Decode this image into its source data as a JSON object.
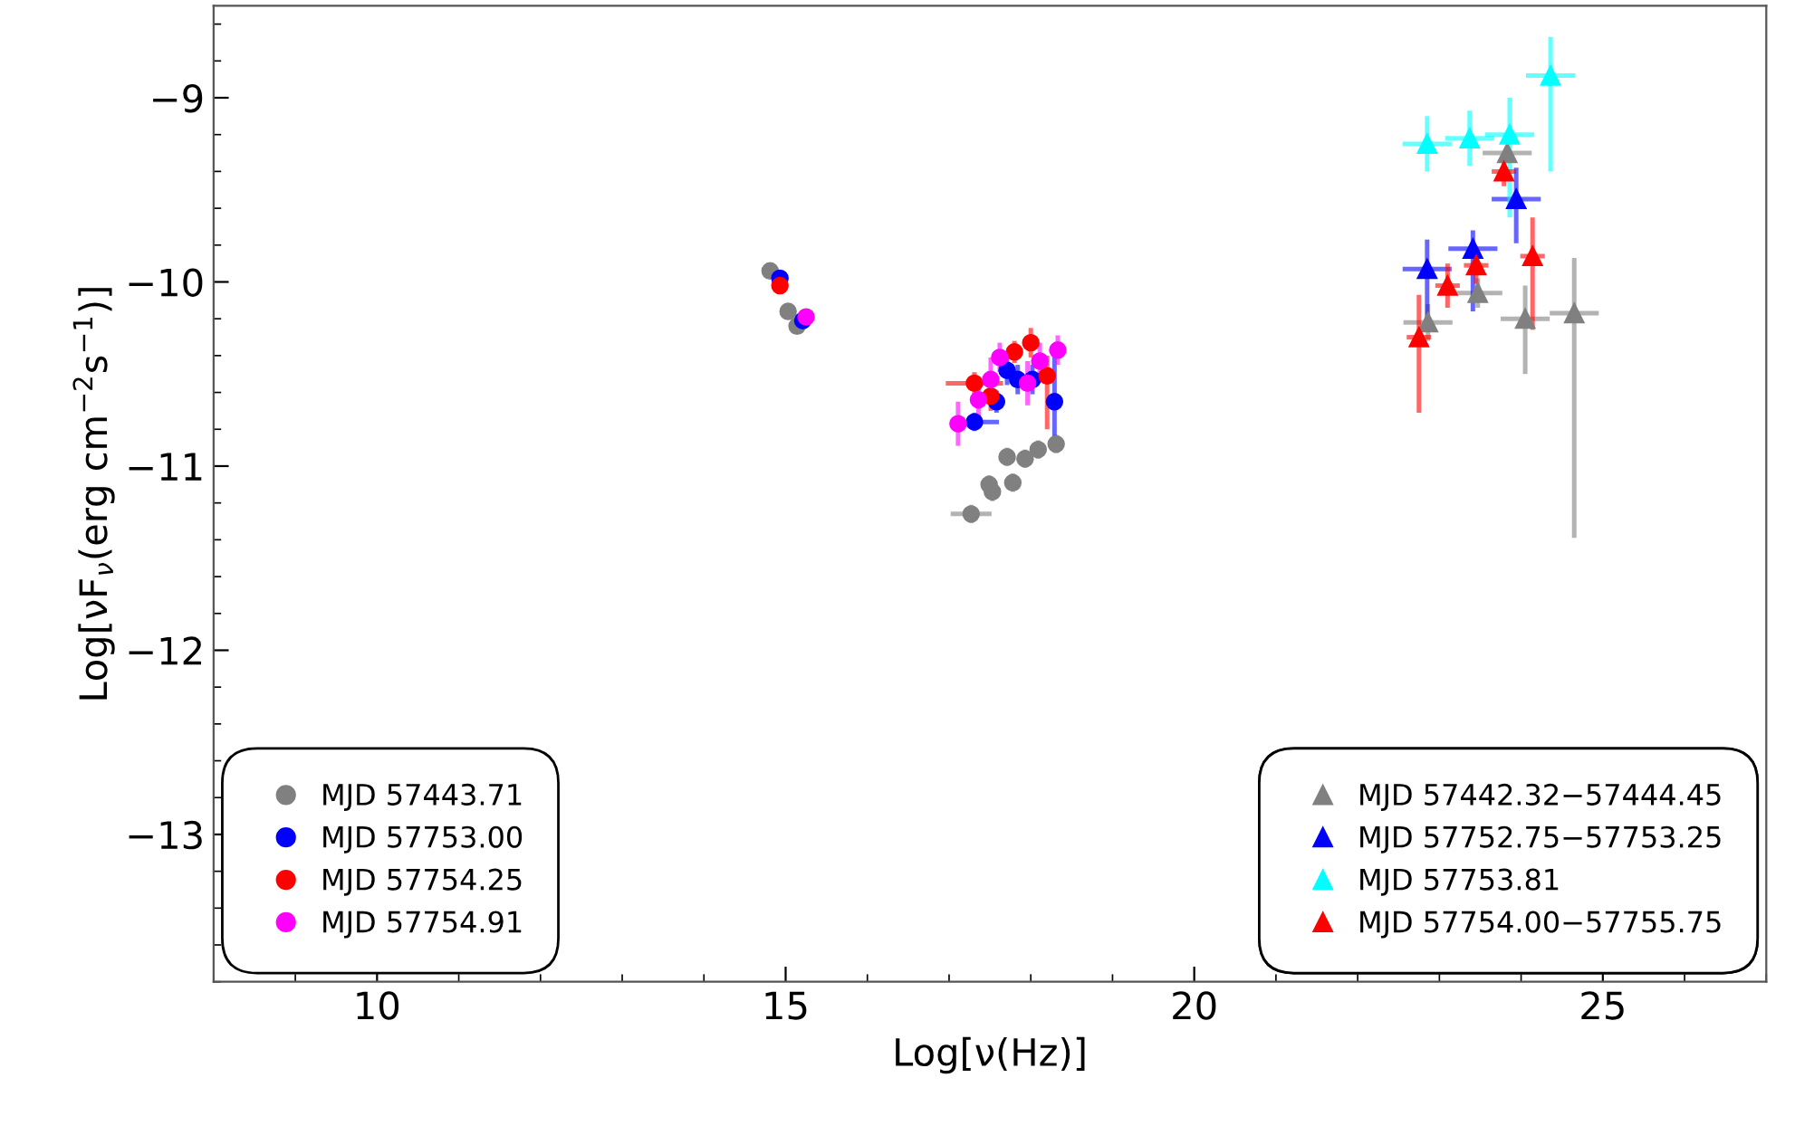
{
  "chart_data": {
    "type": "scatter",
    "xlabel": "Log[ν(Hz)]",
    "ylabel": "Log[νF$_{ν}$(erg cm$^{−2}$s$^{−1}$)]",
    "xlim": [
      8,
      27
    ],
    "ylim": [
      -13.8,
      -8.5
    ],
    "xticks": [
      10,
      15,
      20,
      25
    ],
    "yticks": [
      {
        "value": -9,
        "label": "−9"
      },
      {
        "value": -10,
        "label": "−10"
      },
      {
        "value": -11,
        "label": "−11"
      },
      {
        "value": -12,
        "label": "−12"
      },
      {
        "value": -13,
        "label": "−13"
      }
    ],
    "grid": false,
    "legend": "bottom",
    "series": [
      {
        "name": "MJD 57443.71",
        "color": "#808080",
        "marker": "circle",
        "x": [
          14.81,
          15.03,
          15.14,
          17.27,
          17.49,
          17.53,
          17.71,
          17.78,
          17.93,
          18.09,
          18.31
        ],
        "values": [
          -9.94,
          -10.16,
          -10.24,
          -11.26,
          -11.1,
          -11.14,
          -10.95,
          -11.09,
          -10.96,
          -10.91,
          -10.88
        ],
        "errors": [
          null,
          null,
          null,
          0.05,
          0.05,
          0.05,
          0.05,
          0.05,
          0.05,
          0.05,
          0.05
        ],
        "xerrors": [
          null,
          null,
          null,
          0.25,
          0.05,
          0.05,
          0.05,
          0.05,
          0.05,
          0.05,
          0.05
        ]
      },
      {
        "name": "MJD 57753.00",
        "color": "#0000ff",
        "marker": "circle",
        "x": [
          14.93,
          15.21,
          17.31,
          17.58,
          17.71,
          17.84,
          18.02,
          18.29
        ],
        "values": [
          -9.98,
          -10.21,
          -10.76,
          -10.65,
          -10.48,
          -10.53,
          -10.53,
          -10.65
        ],
        "errors": [
          null,
          null,
          0.05,
          0.06,
          0.08,
          0.08,
          0.08,
          [
            -10.9,
            -10.4
          ]
        ],
        "xerrors": [
          null,
          null,
          0.3,
          0.1,
          0.1,
          0.1,
          0.1,
          0.05
        ]
      },
      {
        "name": "MJD 57754.25",
        "color": "#ff0000",
        "marker": "circle",
        "x": [
          14.93,
          17.31,
          17.51,
          17.8,
          18.0,
          18.2
        ],
        "values": [
          -10.02,
          -10.55,
          -10.62,
          -10.38,
          -10.33,
          -10.51
        ],
        "errors": [
          null,
          0.06,
          0.08,
          0.06,
          0.08,
          [
            -10.8,
            -10.4
          ]
        ],
        "xerrors": [
          null,
          0.35,
          0.1,
          0.1,
          0.1,
          0.05
        ]
      },
      {
        "name": "MJD 57754.91",
        "color": "#ff00ff",
        "marker": "circle",
        "x": [
          15.25,
          17.11,
          17.36,
          17.51,
          17.62,
          17.96,
          18.11,
          18.33
        ],
        "values": [
          -10.19,
          -10.77,
          -10.64,
          -10.53,
          -10.41,
          -10.55,
          -10.43,
          -10.37
        ],
        "errors": [
          null,
          0.12,
          0.1,
          0.12,
          0.08,
          0.12,
          0.1,
          0.08
        ],
        "xerrors": [
          null,
          0.1,
          0.1,
          0.1,
          0.1,
          0.1,
          0.1,
          0.05
        ]
      },
      {
        "name": "MJD 57442.32−57444.45",
        "color": "#808080",
        "marker": "triangle",
        "x": [
          22.86,
          23.47,
          23.83,
          24.05,
          24.65
        ],
        "values": [
          -10.22,
          -10.06,
          -9.3,
          -10.2,
          -10.17
        ],
        "errors": [
          0.1,
          0.08,
          null,
          [
            -10.5,
            -10.02
          ],
          [
            -11.39,
            -9.87
          ]
        ],
        "xerrors": [
          0.3,
          0.3,
          0.3,
          0.3,
          0.3
        ]
      },
      {
        "name": "MJD 57752.75−57753.25",
        "color": "#0000ff",
        "marker": "triangle",
        "x": [
          22.85,
          23.41,
          23.94
        ],
        "values": [
          -9.93,
          -9.82,
          -9.55
        ],
        "errors": [
          [
            -10.2,
            -9.77
          ],
          [
            -10.16,
            -9.72
          ],
          [
            -9.79,
            -9.38
          ]
        ],
        "xerrors": [
          0.3,
          0.3,
          0.3
        ]
      },
      {
        "name": "MJD 57753.81",
        "color": "#00ffff",
        "marker": "triangle",
        "x": [
          22.85,
          23.37,
          23.86,
          24.36
        ],
        "values": [
          -9.25,
          -9.22,
          -9.2,
          -8.88
        ],
        "errors": [
          0.15,
          0.15,
          [
            -9.65,
            -9.0
          ],
          [
            -9.4,
            -8.67
          ]
        ],
        "xerrors": [
          0.3,
          0.3,
          0.3,
          0.3
        ]
      },
      {
        "name": "MJD 57754.00−57755.75",
        "color": "#ff0000",
        "marker": "triangle",
        "x": [
          22.75,
          23.1,
          23.45,
          23.79,
          24.14
        ],
        "values": [
          -10.3,
          -10.02,
          -9.91,
          -9.4,
          -9.86
        ],
        "errors": [
          [
            -10.71,
            -10.07
          ],
          0.12,
          0.1,
          0.08,
          [
            -10.26,
            -9.65
          ]
        ],
        "xerrors": [
          0.15,
          0.15,
          0.15,
          0.15,
          0.15
        ]
      }
    ]
  }
}
